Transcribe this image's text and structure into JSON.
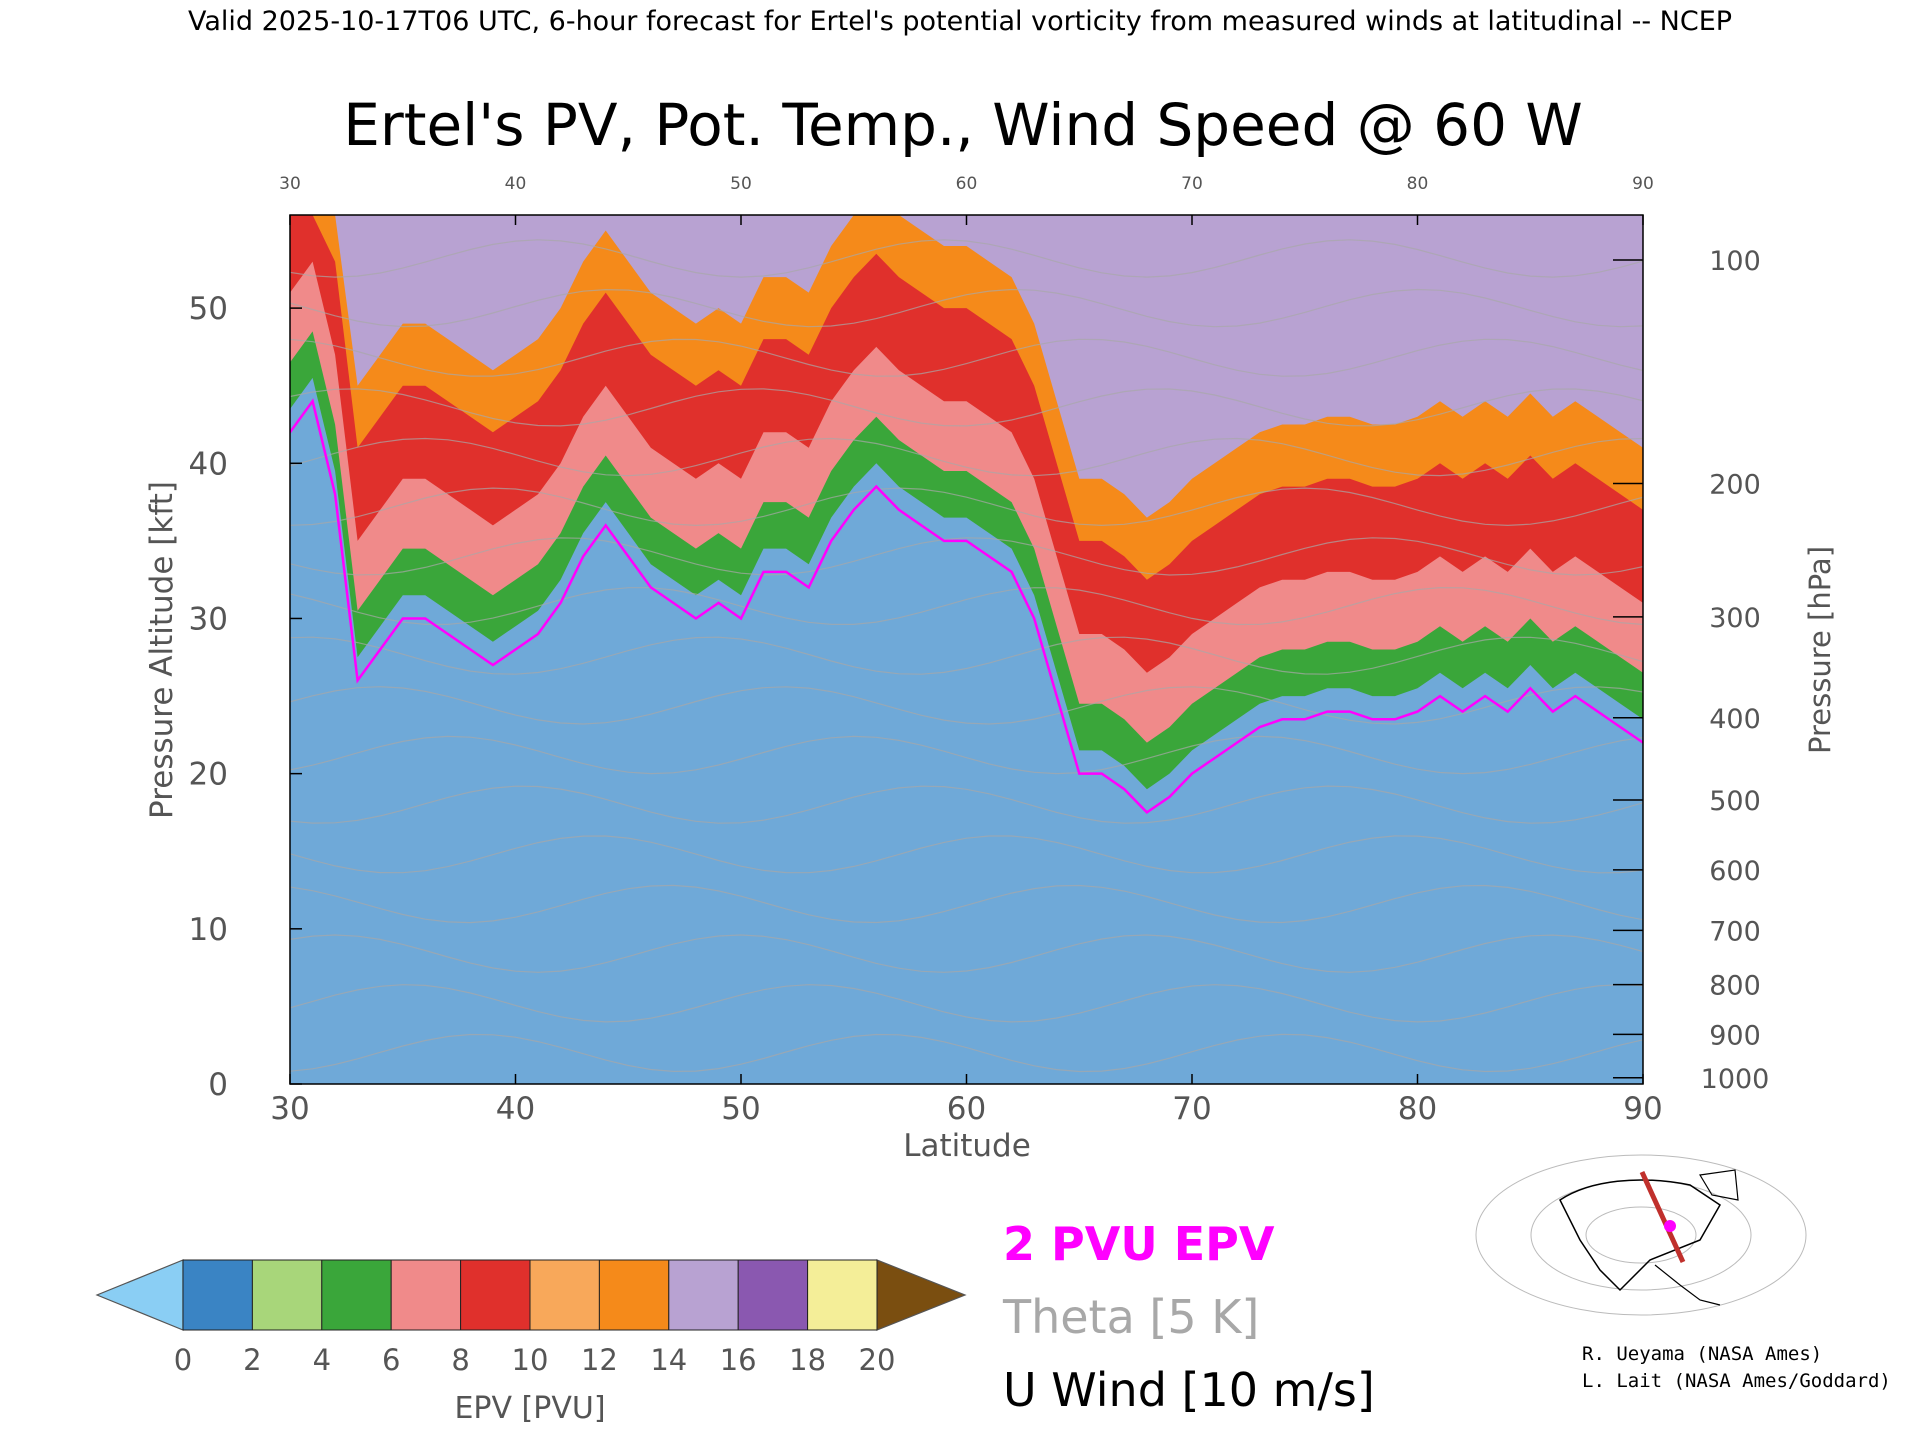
{
  "header": {
    "caption": "Valid 2025-10-17T06 UTC, 6-hour forecast for Ertel's potential vorticity from measured winds at latitudinal -- NCEP"
  },
  "chart_data": {
    "type": "heatmap",
    "title": "Ertel's PV, Pot. Temp., Wind Speed @ 60 W",
    "xlabel": "Latitude",
    "ylabel": "Pressure Altitude [kft]",
    "y2label": "Pressure [hPa]",
    "xlim": [
      30,
      90
    ],
    "ylim": [
      0,
      56
    ],
    "x_ticks": [
      30,
      40,
      50,
      60,
      70,
      80,
      90
    ],
    "y_ticks": [
      0,
      10,
      20,
      30,
      40,
      50
    ],
    "pressure_ticks": [
      {
        "hpa": "100",
        "kft": 53.1
      },
      {
        "hpa": "200",
        "kft": 38.7
      },
      {
        "hpa": "300",
        "kft": 30.1
      },
      {
        "hpa": "400",
        "kft": 23.6
      },
      {
        "hpa": "500",
        "kft": 18.3
      },
      {
        "hpa": "600",
        "kft": 13.8
      },
      {
        "hpa": "700",
        "kft": 9.9
      },
      {
        "hpa": "800",
        "kft": 6.4
      },
      {
        "hpa": "900",
        "kft": 3.2
      },
      {
        "hpa": "1000",
        "kft": 0.4
      }
    ],
    "tropopause_2pvu": {
      "name": "2 PVU EPV",
      "color": "#ff00ff",
      "lat": [
        30,
        31,
        32,
        33,
        34,
        35,
        36,
        37,
        38,
        39,
        40,
        41,
        42,
        43,
        44,
        45,
        46,
        47,
        48,
        49,
        50,
        51,
        52,
        53,
        54,
        55,
        56,
        57,
        58,
        59,
        60,
        61,
        62,
        63,
        64,
        65,
        66,
        67,
        68,
        69,
        70,
        71,
        72,
        73,
        74,
        75,
        76,
        77,
        78,
        79,
        80,
        81,
        82,
        83,
        84,
        85,
        86,
        87,
        88,
        89,
        90
      ],
      "kft": [
        42,
        44,
        38,
        26,
        28,
        30,
        30,
        29,
        28,
        27,
        28,
        29,
        31,
        34,
        36,
        34,
        32,
        31,
        30,
        31,
        30,
        33,
        33,
        32,
        35,
        37,
        38.5,
        37,
        36,
        35,
        35,
        34,
        33,
        30,
        25,
        20,
        20,
        19,
        17.5,
        18.5,
        20,
        21,
        22,
        23,
        23.5,
        23.5,
        24,
        24,
        23.5,
        23.5,
        24,
        25,
        24,
        25,
        24,
        25.5,
        24,
        25,
        24,
        23,
        22
      ]
    },
    "epv_colorbar": {
      "label": "EPV [PVU]",
      "ticks": [
        0,
        2,
        4,
        6,
        8,
        10,
        12,
        14,
        16,
        18,
        20
      ],
      "bins": [
        {
          "lo": 0,
          "hi": 2,
          "color": "#3a84c4"
        },
        {
          "lo": 2,
          "hi": 4,
          "color": "#a8d67a"
        },
        {
          "lo": 4,
          "hi": 6,
          "color": "#3aa63a"
        },
        {
          "lo": 6,
          "hi": 8,
          "color": "#f08a8a"
        },
        {
          "lo": 8,
          "hi": 10,
          "color": "#e0302c"
        },
        {
          "lo": 10,
          "hi": 12,
          "color": "#f8a85a"
        },
        {
          "lo": 12,
          "hi": 14,
          "color": "#f58a1a"
        },
        {
          "lo": 14,
          "hi": 16,
          "color": "#b8a2d2"
        },
        {
          "lo": 16,
          "hi": 18,
          "color": "#8a58b0"
        },
        {
          "lo": 18,
          "hi": 20,
          "color": "#f4ee98"
        }
      ],
      "under_color": "#8acef4",
      "over_color": "#7a4e10"
    },
    "legend": {
      "epv": "2 PVU EPV",
      "epv_color": "#ff00ff",
      "theta": "Theta [5 K]",
      "theta_color": "#a8a8a8",
      "wind": "U Wind [10 m/s]",
      "wind_color": "#000000"
    }
  },
  "credits": {
    "line1": "R. Ueyama (NASA Ames)",
    "line2": "L. Lait (NASA Ames/Goddard)"
  }
}
